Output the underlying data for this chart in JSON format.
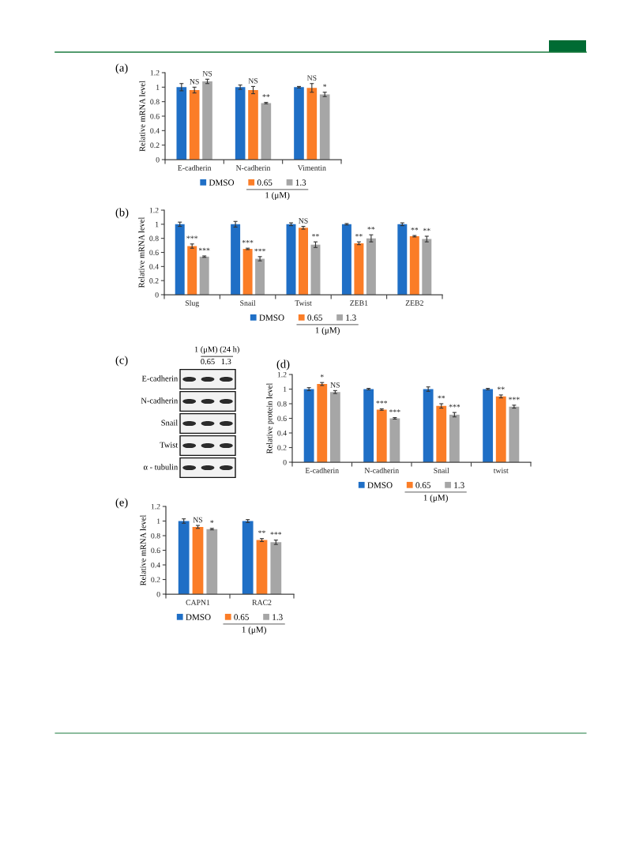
{
  "chart_data": [
    {
      "type": "bar",
      "title": "(a)",
      "ylabel": "Relative mRNA level",
      "legend_title": "1 (μM)",
      "legend": "bottom",
      "categories": [
        "E-cadherin",
        "N-cadherin",
        "Vimentin"
      ],
      "series": [
        {
          "name": "DMSO",
          "color": "#1f6fc6",
          "values": [
            1,
            1,
            1
          ],
          "errors": [
            0.05,
            0.03,
            0.01
          ]
        },
        {
          "name": "0.65",
          "color": "#fb7d27",
          "values": [
            0.96,
            0.96,
            0.99
          ],
          "errors": [
            0.04,
            0.05,
            0.06
          ],
          "value_labels": [
            "NS",
            "NS",
            "NS"
          ]
        },
        {
          "name": "1.3",
          "color": "#a6a6a6",
          "values": [
            1.08,
            0.78,
            0.9
          ],
          "errors": [
            0.03,
            0.01,
            0.03
          ],
          "value_labels": [
            "NS",
            "**",
            "*"
          ]
        }
      ],
      "ylim": [
        0,
        1.2
      ],
      "yticks": [
        0,
        0.2,
        0.4,
        0.6,
        0.8,
        1,
        1.2
      ]
    },
    {
      "type": "bar",
      "title": "(b)",
      "ylabel": "Relative mRNA level",
      "legend_title": "1 (μM)",
      "legend": "bottom",
      "categories": [
        "Slug",
        "Snail",
        "Twist",
        "ZEB1",
        "ZEB2"
      ],
      "series": [
        {
          "name": "DMSO",
          "color": "#1f6fc6",
          "values": [
            1,
            1,
            1,
            1,
            1
          ],
          "errors": [
            0.03,
            0.04,
            0.02,
            0.01,
            0.02
          ]
        },
        {
          "name": "0.65",
          "color": "#fb7d27",
          "values": [
            0.69,
            0.65,
            0.95,
            0.73,
            0.83
          ],
          "errors": [
            0.03,
            0.01,
            0.02,
            0.02,
            0.01
          ],
          "value_labels": [
            "***",
            "***",
            "NS",
            "**",
            "**"
          ]
        },
        {
          "name": "1.3",
          "color": "#a6a6a6",
          "values": [
            0.54,
            0.51,
            0.71,
            0.8,
            0.79
          ],
          "errors": [
            0.01,
            0.03,
            0.04,
            0.05,
            0.04
          ],
          "value_labels": [
            "***",
            "***",
            "**",
            "**",
            "**"
          ]
        }
      ],
      "ylim": [
        0,
        1.2
      ],
      "yticks": [
        0,
        0.2,
        0.4,
        0.6,
        0.8,
        1,
        1.2
      ]
    },
    {
      "type": "other",
      "title": "(c)",
      "annotations": [
        "1 (μM) (24 h)"
      ],
      "categories": [
        null,
        "0.65",
        "1.3"
      ],
      "y_categories": [
        "E-cadherin",
        "N-cadherin",
        "Snail",
        "Twist",
        "α - tubulin"
      ]
    },
    {
      "type": "bar",
      "title": "(d)",
      "ylabel": "Relative protein level",
      "legend_title": "1 (μM)",
      "legend": "bottom",
      "categories": [
        "E-cadherin",
        "N-cadherin",
        "Snail",
        "twist"
      ],
      "series": [
        {
          "name": "DMSO",
          "color": "#1f6fc6",
          "values": [
            1,
            1,
            1,
            1
          ],
          "errors": [
            0.02,
            0.01,
            0.03,
            0.01
          ]
        },
        {
          "name": "0.65",
          "color": "#fb7d27",
          "values": [
            1.07,
            0.72,
            0.77,
            0.9
          ],
          "errors": [
            0.02,
            0.01,
            0.03,
            0.02
          ],
          "value_labels": [
            "*",
            "***",
            "**",
            "**"
          ]
        },
        {
          "name": "1.3",
          "color": "#a6a6a6",
          "values": [
            0.96,
            0.6,
            0.65,
            0.76
          ],
          "errors": [
            0.02,
            0.01,
            0.03,
            0.02
          ],
          "value_labels": [
            "NS",
            "***",
            "***",
            "***"
          ]
        }
      ],
      "ylim": [
        0,
        1.2
      ],
      "yticks": [
        0,
        0.2,
        0.4,
        0.6,
        0.8,
        1,
        1.2
      ]
    },
    {
      "type": "bar",
      "title": "(e)",
      "ylabel": "Relative mRNA level",
      "legend_title": "1 (μM)",
      "legend": "bottom",
      "categories": [
        "CAPN1",
        "RAC2"
      ],
      "series": [
        {
          "name": "DMSO",
          "color": "#1f6fc6",
          "values": [
            1,
            1
          ],
          "errors": [
            0.03,
            0.02
          ]
        },
        {
          "name": "0.65",
          "color": "#fb7d27",
          "values": [
            0.92,
            0.74
          ],
          "errors": [
            0.02,
            0.02
          ],
          "value_labels": [
            "NS",
            "**"
          ]
        },
        {
          "name": "1.3",
          "color": "#a6a6a6",
          "values": [
            0.89,
            0.71
          ],
          "errors": [
            0.01,
            0.03
          ],
          "value_labels": [
            "*",
            "***"
          ]
        }
      ],
      "ylim": [
        0,
        1.2
      ],
      "yticks": [
        0,
        0.2,
        0.4,
        0.6,
        0.8,
        1,
        1.2
      ]
    }
  ]
}
